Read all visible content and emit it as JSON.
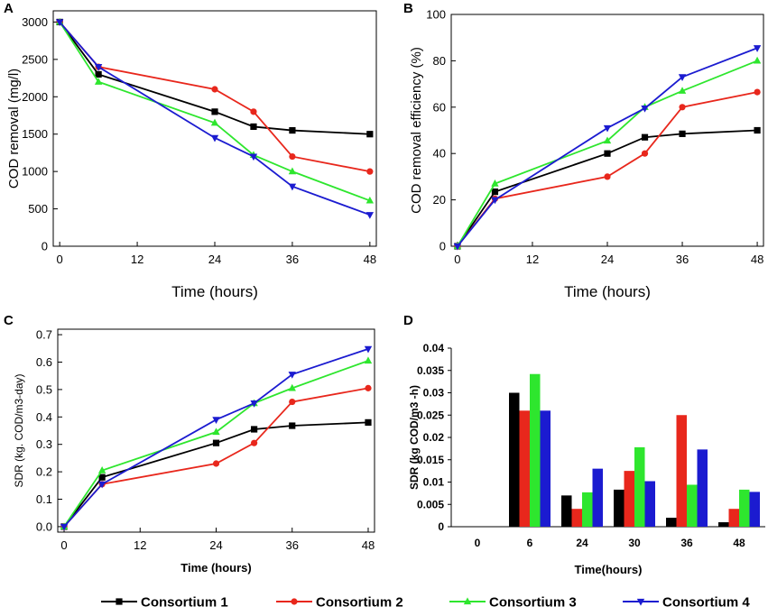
{
  "legend": {
    "entries": [
      {
        "name": "Consortium 1",
        "color": "#000000",
        "marker": "square"
      },
      {
        "name": "Consortium 2",
        "color": "#e8271c",
        "marker": "circle"
      },
      {
        "name": "Consortium 3",
        "color": "#2ee62e",
        "marker": "triangle-up"
      },
      {
        "name": "Consortium 4",
        "color": "#1b1bd0",
        "marker": "triangle-down"
      }
    ]
  },
  "chart_data": [
    {
      "panel": "A",
      "type": "line",
      "title": "",
      "xlabel": "Time (hours)",
      "ylabel": "COD removal (mg/l)",
      "x": [
        0,
        6,
        24,
        30,
        36,
        48
      ],
      "xticks": [
        "0",
        "12",
        "24",
        "36",
        "48"
      ],
      "xtick_values": [
        0,
        12,
        24,
        36,
        48
      ],
      "xlim": [
        -1,
        49
      ],
      "ylim": [
        0,
        3150
      ],
      "yticks": [
        "0",
        "500",
        "1000",
        "1500",
        "2000",
        "2500",
        "3000"
      ],
      "ytick_values": [
        0,
        500,
        1000,
        1500,
        2000,
        2500,
        3000
      ],
      "series": [
        {
          "name": "Consortium 1",
          "values": [
            3000,
            2300,
            1800,
            1600,
            1550,
            1500
          ]
        },
        {
          "name": "Consortium 2",
          "values": [
            3000,
            2400,
            2100,
            1800,
            1200,
            1000
          ]
        },
        {
          "name": "Consortium 3",
          "values": [
            3000,
            2200,
            1650,
            1220,
            1000,
            610
          ]
        },
        {
          "name": "Consortium 4",
          "values": [
            3000,
            2400,
            1450,
            1200,
            800,
            420
          ]
        }
      ]
    },
    {
      "panel": "B",
      "type": "line",
      "title": "",
      "xlabel": "Time (hours)",
      "ylabel": "COD removal efficiency (%)",
      "x": [
        0,
        6,
        24,
        30,
        36,
        48
      ],
      "xticks": [
        "0",
        "12",
        "24",
        "36",
        "48"
      ],
      "xtick_values": [
        0,
        12,
        24,
        36,
        48
      ],
      "xlim": [
        -1,
        49
      ],
      "ylim": [
        0,
        100
      ],
      "yticks": [
        "0",
        "20",
        "40",
        "60",
        "80",
        "100"
      ],
      "ytick_values": [
        0,
        20,
        40,
        60,
        80,
        100
      ],
      "series": [
        {
          "name": "Consortium 1",
          "values": [
            0,
            23.5,
            40,
            47,
            48.5,
            50
          ]
        },
        {
          "name": "Consortium 2",
          "values": [
            0,
            20.5,
            30,
            40,
            60,
            66.5
          ]
        },
        {
          "name": "Consortium 3",
          "values": [
            0,
            27,
            45.5,
            60,
            67,
            80
          ]
        },
        {
          "name": "Consortium 4",
          "values": [
            0,
            20,
            51,
            59.5,
            73,
            85.5
          ]
        }
      ]
    },
    {
      "panel": "C",
      "type": "line",
      "title": "",
      "xlabel": "Time (hours)",
      "ylabel": "SDR (kg. COD/m3-day)",
      "x": [
        0,
        6,
        24,
        30,
        36,
        48
      ],
      "xticks": [
        "0",
        "12",
        "24",
        "36",
        "48"
      ],
      "xtick_values": [
        0,
        12,
        24,
        36,
        48
      ],
      "xlim": [
        -1,
        49
      ],
      "ylim": [
        -0.02,
        0.72
      ],
      "yticks": [
        "0.0",
        "0.1",
        "0.2",
        "0.3",
        "0.4",
        "0.5",
        "0.6",
        "0.7"
      ],
      "ytick_values": [
        0,
        0.1,
        0.2,
        0.3,
        0.4,
        0.5,
        0.6,
        0.7
      ],
      "series": [
        {
          "name": "Consortium 1",
          "values": [
            0,
            0.18,
            0.305,
            0.355,
            0.368,
            0.38
          ]
        },
        {
          "name": "Consortium 2",
          "values": [
            0,
            0.155,
            0.23,
            0.305,
            0.455,
            0.505
          ]
        },
        {
          "name": "Consortium 3",
          "values": [
            0,
            0.205,
            0.345,
            0.45,
            0.505,
            0.605
          ]
        },
        {
          "name": "Consortium 4",
          "values": [
            0,
            0.155,
            0.39,
            0.45,
            0.555,
            0.648
          ]
        }
      ]
    },
    {
      "panel": "D",
      "type": "bar",
      "title": "",
      "xlabel": "Time(hours)",
      "ylabel": "SDR (kg COD/m3 -h)",
      "categories": [
        "0",
        "6",
        "24",
        "30",
        "36",
        "48"
      ],
      "ylim": [
        0,
        0.04
      ],
      "yticks": [
        "0",
        "0.005",
        "0.01",
        "0.015",
        "0.02",
        "0.025",
        "0.03",
        "0.035",
        "0.04"
      ],
      "ytick_values": [
        0,
        0.005,
        0.01,
        0.015,
        0.02,
        0.025,
        0.03,
        0.035,
        0.04
      ],
      "series": [
        {
          "name": "Consortium 1",
          "values": [
            0,
            0.03,
            0.007,
            0.0083,
            0.002,
            0.001
          ]
        },
        {
          "name": "Consortium 2",
          "values": [
            0,
            0.026,
            0.004,
            0.0125,
            0.025,
            0.004
          ]
        },
        {
          "name": "Consortium 3",
          "values": [
            0,
            0.0342,
            0.0077,
            0.0178,
            0.0094,
            0.0083
          ]
        },
        {
          "name": "Consortium 4",
          "values": [
            0,
            0.026,
            0.013,
            0.0102,
            0.0173,
            0.0078
          ]
        }
      ]
    }
  ]
}
